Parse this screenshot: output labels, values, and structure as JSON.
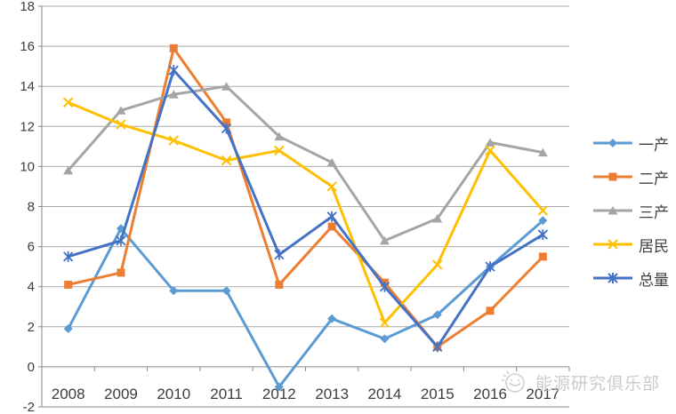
{
  "chart_data": {
    "type": "line",
    "title": "",
    "xlabel": "",
    "ylabel": "",
    "categories": [
      "2008",
      "2009",
      "2010",
      "2011",
      "2012",
      "2013",
      "2014",
      "2015",
      "2016",
      "2017"
    ],
    "series": [
      {
        "name": "一产",
        "color": "#5B9BD5",
        "marker": "diamond",
        "values": [
          1.9,
          6.9,
          3.8,
          3.8,
          -1.0,
          2.4,
          1.4,
          2.6,
          5.0,
          7.3
        ]
      },
      {
        "name": "二产",
        "color": "#ED7D31",
        "marker": "square",
        "values": [
          4.1,
          4.7,
          15.9,
          12.2,
          4.1,
          7.0,
          4.2,
          1.0,
          2.8,
          5.5
        ]
      },
      {
        "name": "三产",
        "color": "#A5A5A5",
        "marker": "triangle",
        "values": [
          9.8,
          12.8,
          13.6,
          14.0,
          11.5,
          10.2,
          6.3,
          7.4,
          11.2,
          10.7
        ]
      },
      {
        "name": "居民",
        "color": "#FFC000",
        "marker": "x",
        "values": [
          13.2,
          12.1,
          11.3,
          10.3,
          10.8,
          9.0,
          2.2,
          5.1,
          10.8,
          7.8
        ]
      },
      {
        "name": "总量",
        "color": "#4472C4",
        "marker": "asterisk",
        "values": [
          5.5,
          6.3,
          14.8,
          11.9,
          5.6,
          7.5,
          4.0,
          1.0,
          5.0,
          6.6
        ]
      }
    ],
    "ylim": [
      -2,
      18
    ],
    "ytick_step": 2,
    "grid": "horizontal",
    "legend_position": "right",
    "colors": {
      "grid": "#aaaaaa",
      "axis": "#8a8a8a",
      "tick_label": "#3d3d3d"
    }
  },
  "watermark": {
    "text": "能源研究俱乐部",
    "icon": "club-logo-icon",
    "color": "#c3c3c3"
  }
}
